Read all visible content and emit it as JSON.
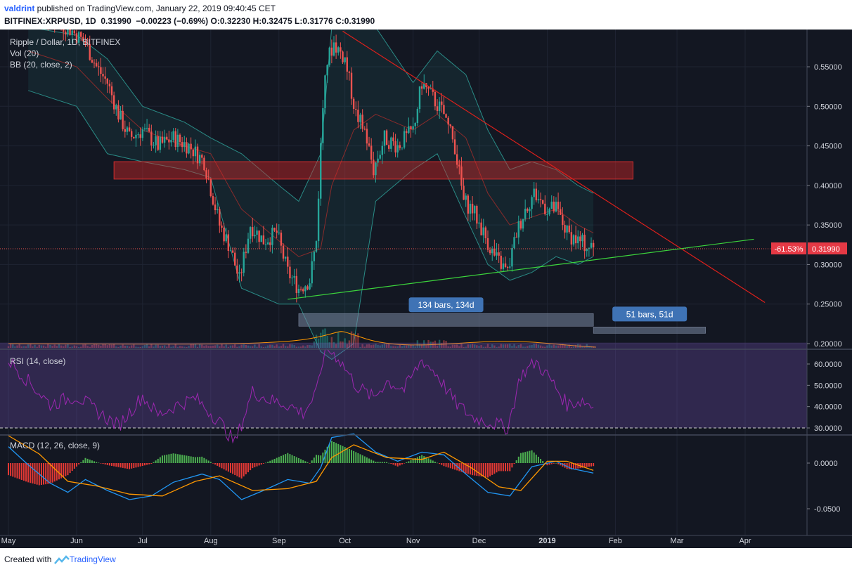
{
  "header": {
    "author": "valdrint",
    "published": " published on TradingView.com, January 22, 2019 09:40:45 CET",
    "symbol": "BITFINEX:XRPUSD, 1D",
    "last": "0.31990",
    "change": "−0.00223 (−0.69%)",
    "o_label": "O:",
    "o": "0.32230",
    "h_label": "H:",
    "h": "0.32475",
    "l_label": "L:",
    "l": "0.31776",
    "c_label": "C:",
    "c": "0.31990"
  },
  "footer": {
    "created_with": "Created with",
    "brand": "TradingView"
  },
  "colors": {
    "bg": "#131722",
    "up": "#26a69a",
    "down": "#ef5350",
    "rsi": "#9c27b0",
    "macd_line": "#2196f3",
    "signal_line": "#ff9800",
    "hist_up": "#4caf50",
    "hist_down": "#e53935",
    "resistance_line": "#e0201b",
    "support_line": "#3cd43c",
    "price_label_bg": "#e53945"
  },
  "chart_data": [
    {
      "type": "candlestick",
      "pane": "price",
      "legend": [
        "Ripple / Dollar, 1D, BITFINEX",
        "Vol (20)",
        "BB (20, close, 2)"
      ],
      "x_ticks": [
        "May",
        "Jun",
        "Jul",
        "Aug",
        "Sep",
        "Oct",
        "Nov",
        "Dec",
        "2019",
        "Feb",
        "Mar",
        "Apr"
      ],
      "y_ticks": [
        "0.55000",
        "0.50000",
        "0.45000",
        "0.40000",
        "0.35000",
        "0.30000",
        "0.25000",
        "0.20000"
      ],
      "ylim": [
        0.19,
        0.595
      ],
      "last_price": "0.31990",
      "last_price_change": "-61.53%",
      "close_path": [
        [
          "2018-05-01",
          0.63
        ],
        [
          "2018-05-20",
          0.61
        ],
        [
          "2018-05-28",
          0.6
        ],
        [
          "2018-06-05",
          0.58
        ],
        [
          "2018-06-10",
          0.55
        ],
        [
          "2018-06-15",
          0.53
        ],
        [
          "2018-06-20",
          0.49
        ],
        [
          "2018-06-25",
          0.46
        ],
        [
          "2018-07-01",
          0.47
        ],
        [
          "2018-07-08",
          0.45
        ],
        [
          "2018-07-15",
          0.46
        ],
        [
          "2018-07-22",
          0.45
        ],
        [
          "2018-07-29",
          0.43
        ],
        [
          "2018-08-05",
          0.35
        ],
        [
          "2018-08-10",
          0.32
        ],
        [
          "2018-08-14",
          0.28
        ],
        [
          "2018-08-19",
          0.35
        ],
        [
          "2018-08-25",
          0.33
        ],
        [
          "2018-08-31",
          0.34
        ],
        [
          "2018-09-05",
          0.29
        ],
        [
          "2018-09-10",
          0.27
        ],
        [
          "2018-09-15",
          0.28
        ],
        [
          "2018-09-18",
          0.33
        ],
        [
          "2018-09-20",
          0.45
        ],
        [
          "2018-09-22",
          0.55
        ],
        [
          "2018-09-26",
          0.58
        ],
        [
          "2018-10-01",
          0.56
        ],
        [
          "2018-10-06",
          0.49
        ],
        [
          "2018-10-10",
          0.47
        ],
        [
          "2018-10-14",
          0.42
        ],
        [
          "2018-10-19",
          0.46
        ],
        [
          "2018-10-25",
          0.45
        ],
        [
          "2018-11-01",
          0.47
        ],
        [
          "2018-11-05",
          0.53
        ],
        [
          "2018-11-10",
          0.51
        ],
        [
          "2018-11-15",
          0.49
        ],
        [
          "2018-11-20",
          0.45
        ],
        [
          "2018-11-24",
          0.38
        ],
        [
          "2018-11-28",
          0.37
        ],
        [
          "2018-12-03",
          0.34
        ],
        [
          "2018-12-08",
          0.31
        ],
        [
          "2018-12-14",
          0.29
        ],
        [
          "2018-12-18",
          0.34
        ],
        [
          "2018-12-22",
          0.37
        ],
        [
          "2018-12-26",
          0.39
        ],
        [
          "2019-01-01",
          0.37
        ],
        [
          "2019-01-05",
          0.37
        ],
        [
          "2019-01-10",
          0.34
        ],
        [
          "2019-01-15",
          0.33
        ],
        [
          "2019-01-22",
          0.3199
        ]
      ],
      "bollinger": {
        "upper": [
          [
            "2018-05-10",
            0.6
          ],
          [
            "2018-06-01",
            0.59
          ],
          [
            "2018-06-15",
            0.56
          ],
          [
            "2018-07-01",
            0.5
          ],
          [
            "2018-07-20",
            0.48
          ],
          [
            "2018-08-01",
            0.46
          ],
          [
            "2018-08-15",
            0.44
          ],
          [
            "2018-09-01",
            0.4
          ],
          [
            "2018-09-10",
            0.38
          ],
          [
            "2018-09-20",
            0.44
          ],
          [
            "2018-09-25",
            0.6
          ],
          [
            "2018-10-05",
            0.63
          ],
          [
            "2018-10-15",
            0.6
          ],
          [
            "2018-11-01",
            0.53
          ],
          [
            "2018-11-12",
            0.57
          ],
          [
            "2018-11-25",
            0.54
          ],
          [
            "2018-12-05",
            0.47
          ],
          [
            "2018-12-15",
            0.42
          ],
          [
            "2018-12-25",
            0.43
          ],
          [
            "2019-01-05",
            0.42
          ],
          [
            "2019-01-15",
            0.4
          ],
          [
            "2019-01-22",
            0.39
          ]
        ],
        "lower": [
          [
            "2018-05-10",
            0.52
          ],
          [
            "2018-06-01",
            0.5
          ],
          [
            "2018-06-15",
            0.44
          ],
          [
            "2018-07-01",
            0.43
          ],
          [
            "2018-07-20",
            0.42
          ],
          [
            "2018-08-01",
            0.41
          ],
          [
            "2018-08-15",
            0.27
          ],
          [
            "2018-09-01",
            0.25
          ],
          [
            "2018-09-10",
            0.25
          ],
          [
            "2018-09-20",
            0.19
          ],
          [
            "2018-09-25",
            0.18
          ],
          [
            "2018-10-05",
            0.2
          ],
          [
            "2018-10-15",
            0.38
          ],
          [
            "2018-11-01",
            0.42
          ],
          [
            "2018-11-12",
            0.44
          ],
          [
            "2018-11-25",
            0.36
          ],
          [
            "2018-12-05",
            0.3
          ],
          [
            "2018-12-15",
            0.28
          ],
          [
            "2018-12-25",
            0.29
          ],
          [
            "2019-01-05",
            0.31
          ],
          [
            "2019-01-15",
            0.3
          ],
          [
            "2019-01-22",
            0.31
          ]
        ],
        "basis": [
          [
            "2018-05-10",
            0.57
          ],
          [
            "2018-06-01",
            0.55
          ],
          [
            "2018-06-15",
            0.51
          ],
          [
            "2018-07-01",
            0.47
          ],
          [
            "2018-07-20",
            0.45
          ],
          [
            "2018-08-01",
            0.44
          ],
          [
            "2018-08-15",
            0.37
          ],
          [
            "2018-09-01",
            0.33
          ],
          [
            "2018-09-10",
            0.31
          ],
          [
            "2018-09-20",
            0.32
          ],
          [
            "2018-09-25",
            0.4
          ],
          [
            "2018-10-05",
            0.47
          ],
          [
            "2018-10-15",
            0.49
          ],
          [
            "2018-11-01",
            0.47
          ],
          [
            "2018-11-12",
            0.49
          ],
          [
            "2018-11-25",
            0.46
          ],
          [
            "2018-12-05",
            0.39
          ],
          [
            "2018-12-15",
            0.35
          ],
          [
            "2018-12-25",
            0.36
          ],
          [
            "2019-01-05",
            0.37
          ],
          [
            "2019-01-15",
            0.35
          ],
          [
            "2019-01-22",
            0.34
          ]
        ]
      },
      "annotations": {
        "resistance_zone": {
          "x": [
            "2018-06-18",
            "2019-02-09"
          ],
          "y": [
            0.408,
            0.43
          ]
        },
        "downtrend_line": {
          "from": [
            "2018-09-30",
            0.595
          ],
          "to": [
            "2019-04-10",
            0.252
          ]
        },
        "uptrend_line": {
          "from": [
            "2018-09-05",
            0.256
          ],
          "to": [
            "2019-04-05",
            0.332
          ]
        },
        "ranges": [
          {
            "label": "134 bars, 134d",
            "x": [
              "2018-09-10",
              "2019-01-22"
            ],
            "y": [
              0.222,
              0.238
            ]
          },
          {
            "label": "51 bars, 51d",
            "x": [
              "2019-01-22",
              "2019-03-14"
            ],
            "y": [
              0.213,
              0.221
            ]
          }
        ]
      }
    },
    {
      "type": "line",
      "pane": "rsi",
      "legend": "RSI (14, close)",
      "y_ticks": [
        "60.0000",
        "50.0000",
        "40.0000",
        "30.0000"
      ],
      "ylim": [
        22,
        67
      ],
      "band": [
        30,
        70
      ],
      "values": [
        [
          "2018-05-01",
          62
        ],
        [
          "2018-05-10",
          52
        ],
        [
          "2018-05-20",
          41
        ],
        [
          "2018-06-01",
          45
        ],
        [
          "2018-06-10",
          38
        ],
        [
          "2018-06-20",
          31
        ],
        [
          "2018-07-01",
          45
        ],
        [
          "2018-07-08",
          36
        ],
        [
          "2018-07-15",
          40
        ],
        [
          "2018-07-25",
          44
        ],
        [
          "2018-08-05",
          33
        ],
        [
          "2018-08-12",
          23
        ],
        [
          "2018-08-20",
          47
        ],
        [
          "2018-08-28",
          43
        ],
        [
          "2018-09-05",
          41
        ],
        [
          "2018-09-12",
          37
        ],
        [
          "2018-09-18",
          46
        ],
        [
          "2018-09-22",
          68
        ],
        [
          "2018-09-28",
          63
        ],
        [
          "2018-10-06",
          50
        ],
        [
          "2018-10-14",
          44
        ],
        [
          "2018-10-20",
          52
        ],
        [
          "2018-10-28",
          48
        ],
        [
          "2018-11-05",
          62
        ],
        [
          "2018-11-12",
          55
        ],
        [
          "2018-11-20",
          42
        ],
        [
          "2018-11-28",
          35
        ],
        [
          "2018-12-05",
          33
        ],
        [
          "2018-12-14",
          30
        ],
        [
          "2018-12-20",
          55
        ],
        [
          "2018-12-27",
          61
        ],
        [
          "2019-01-03",
          52
        ],
        [
          "2019-01-10",
          41
        ],
        [
          "2019-01-17",
          43
        ],
        [
          "2019-01-22",
          40
        ]
      ]
    },
    {
      "type": "line+histogram",
      "pane": "macd",
      "legend": "MACD (12, 26, close, 9)",
      "y_ticks": [
        "0.0000",
        "-0.0500"
      ],
      "ylim": [
        -0.066,
        0.031
      ],
      "macd": [
        [
          "2018-05-01",
          0.018
        ],
        [
          "2018-05-10",
          -0.002
        ],
        [
          "2018-05-20",
          -0.022
        ],
        [
          "2018-05-28",
          -0.032
        ],
        [
          "2018-06-05",
          -0.018
        ],
        [
          "2018-06-15",
          -0.03
        ],
        [
          "2018-06-25",
          -0.04
        ],
        [
          "2018-07-05",
          -0.036
        ],
        [
          "2018-07-15",
          -0.021
        ],
        [
          "2018-07-28",
          -0.012
        ],
        [
          "2018-08-05",
          -0.018
        ],
        [
          "2018-08-15",
          -0.04
        ],
        [
          "2018-08-25",
          -0.03
        ],
        [
          "2018-09-05",
          -0.018
        ],
        [
          "2018-09-15",
          -0.022
        ],
        [
          "2018-09-20",
          -0.005
        ],
        [
          "2018-09-25",
          0.028
        ],
        [
          "2018-10-05",
          0.032
        ],
        [
          "2018-10-15",
          0.012
        ],
        [
          "2018-10-25",
          0.002
        ],
        [
          "2018-11-05",
          0.012
        ],
        [
          "2018-11-15",
          0.009
        ],
        [
          "2018-11-25",
          -0.012
        ],
        [
          "2018-12-05",
          -0.032
        ],
        [
          "2018-12-15",
          -0.036
        ],
        [
          "2018-12-25",
          -0.004
        ],
        [
          "2019-01-05",
          0.002
        ],
        [
          "2019-01-12",
          -0.006
        ],
        [
          "2019-01-22",
          -0.011
        ]
      ],
      "signal": [
        [
          "2018-05-01",
          0.03
        ],
        [
          "2018-05-15",
          0.01
        ],
        [
          "2018-05-28",
          -0.02
        ],
        [
          "2018-06-10",
          -0.025
        ],
        [
          "2018-06-25",
          -0.034
        ],
        [
          "2018-07-10",
          -0.036
        ],
        [
          "2018-07-25",
          -0.02
        ],
        [
          "2018-08-05",
          -0.014
        ],
        [
          "2018-08-20",
          -0.03
        ],
        [
          "2018-09-05",
          -0.028
        ],
        [
          "2018-09-18",
          -0.02
        ],
        [
          "2018-09-25",
          0.006
        ],
        [
          "2018-10-05",
          0.02
        ],
        [
          "2018-10-20",
          0.006
        ],
        [
          "2018-11-05",
          0.004
        ],
        [
          "2018-11-15",
          0.012
        ],
        [
          "2018-11-28",
          -0.006
        ],
        [
          "2018-12-10",
          -0.026
        ],
        [
          "2018-12-20",
          -0.03
        ],
        [
          "2019-01-01",
          0.002
        ],
        [
          "2019-01-10",
          0.002
        ],
        [
          "2019-01-22",
          -0.008
        ]
      ]
    }
  ]
}
